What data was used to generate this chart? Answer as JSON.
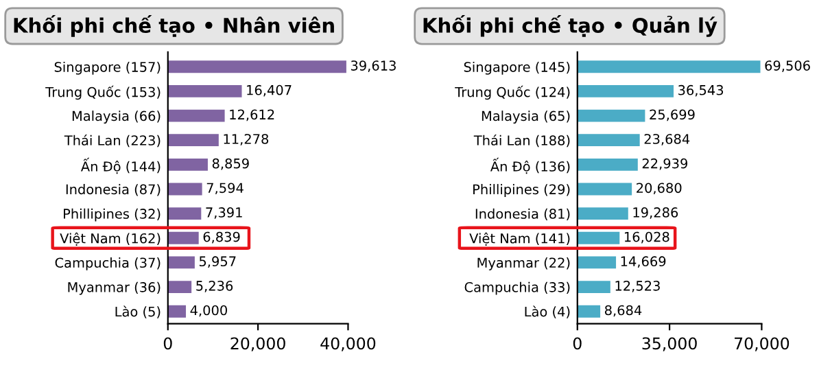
{
  "chart_data": [
    {
      "type": "bar",
      "orientation": "horizontal",
      "title": "Khối phi chế tạo • Nhân viên",
      "categories": [
        "Singapore (157)",
        "Trung Quốc (153)",
        "Malaysia (66)",
        "Thái Lan (223)",
        "Ấn Độ (144)",
        "Indonesia (87)",
        "Phillipines (32)",
        "Việt Nam (162)",
        "Campuchia (37)",
        "Myanmar (36)",
        "Lào (5)"
      ],
      "values": [
        39613,
        16407,
        12612,
        11278,
        8859,
        7594,
        7391,
        6839,
        5957,
        5236,
        4000
      ],
      "value_labels": [
        "39,613",
        "16,407",
        "12,612",
        "11,278",
        "8,859",
        "7,594",
        "7,391",
        "6,839",
        "5,957",
        "5,236",
        "4,000"
      ],
      "color": "#8064a2",
      "xlim": [
        0,
        40000
      ],
      "xticks": [
        0,
        {
          "value": 20000,
          "label": "20,000"
        },
        {
          "value": 40000,
          "label": "40,000"
        }
      ]
    },
    {
      "type": "bar",
      "orientation": "horizontal",
      "title": "Khối phi chế tạo • Quản lý",
      "categories": [
        "Singapore (145)",
        "Trung Quốc (124)",
        "Malaysia (65)",
        "Thái Lan (188)",
        "Ấn Độ (136)",
        "Phillipines (29)",
        "Indonesia (81)",
        "Việt Nam (141)",
        "Myanmar (22)",
        "Campuchia (33)",
        "Lào (4)"
      ],
      "values": [
        69506,
        36543,
        25699,
        23684,
        22939,
        20680,
        19286,
        16028,
        14669,
        12523,
        8684
      ],
      "value_labels": [
        "69,506",
        "36,543",
        "25,699",
        "23,684",
        "22,939",
        "20,680",
        "19,286",
        "16,028",
        "14,669",
        "12,523",
        "8,684"
      ],
      "color": "#4bacc6",
      "xlim": [
        0,
        70000
      ],
      "xticks": [
        0,
        {
          "value": 35000,
          "label": "35,000"
        },
        {
          "value": 70000,
          "label": "70,000"
        }
      ]
    }
  ]
}
